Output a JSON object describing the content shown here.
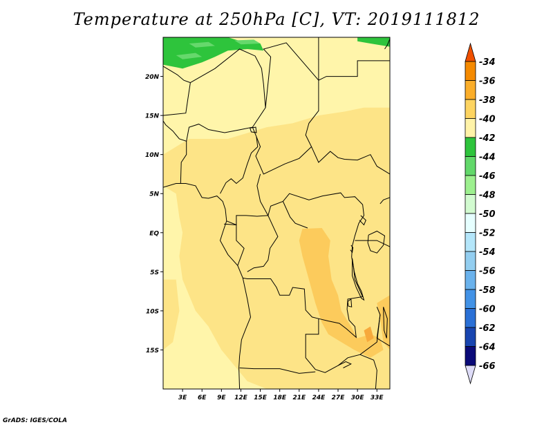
{
  "title": "Temperature at 250hPa [C], VT: 2019111812",
  "footer": "GrADS: IGES/COLA",
  "map": {
    "lat_range": [
      -20,
      25
    ],
    "lon_range": [
      0,
      35
    ],
    "lat_ticks": [
      {
        "value": 20,
        "label": "20N"
      },
      {
        "value": 15,
        "label": "15N"
      },
      {
        "value": 10,
        "label": "10N"
      },
      {
        "value": 5,
        "label": "5N"
      },
      {
        "value": 0,
        "label": "EQ"
      },
      {
        "value": -5,
        "label": "5S"
      },
      {
        "value": -10,
        "label": "10S"
      },
      {
        "value": -15,
        "label": "15S"
      }
    ],
    "lon_ticks": [
      {
        "value": 3,
        "label": "3E"
      },
      {
        "value": 6,
        "label": "6E"
      },
      {
        "value": 9,
        "label": "9E"
      },
      {
        "value": 12,
        "label": "12E"
      },
      {
        "value": 15,
        "label": "15E"
      },
      {
        "value": 18,
        "label": "18E"
      },
      {
        "value": 21,
        "label": "21E"
      },
      {
        "value": 24,
        "label": "24E"
      },
      {
        "value": 27,
        "label": "27E"
      },
      {
        "value": 30,
        "label": "30E"
      },
      {
        "value": 33,
        "label": "33E"
      }
    ]
  },
  "colorbar": {
    "labels": [
      "-34",
      "-36",
      "-38",
      "-40",
      "-42",
      "-44",
      "-46",
      "-48",
      "-50",
      "-52",
      "-54",
      "-56",
      "-58",
      "-60",
      "-62",
      "-64",
      "-66"
    ],
    "colors": [
      "#f05000",
      "#f58a00",
      "#fbae2a",
      "#fdd461",
      "#fff3a8",
      "#2ec43c",
      "#62d86a",
      "#9df08f",
      "#d2fbd0",
      "#e6ffff",
      "#b4e6fa",
      "#93cef0",
      "#6ab2ec",
      "#4292e6",
      "#2a70d6",
      "#1845b0",
      "#0a0a78",
      "#dedcf8"
    ]
  },
  "field_colors": {
    "band_-42": "#fff5aa",
    "band_-40": "#fde487",
    "band_-38": "#fccb5c",
    "band_-36": "#f7a93c",
    "band_-44": "#2ec43c",
    "band_-46": "#66d86c"
  }
}
